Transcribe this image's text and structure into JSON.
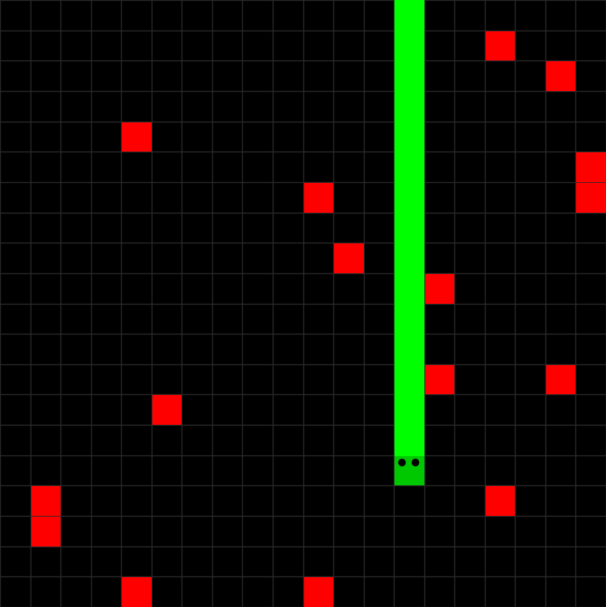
{
  "game": {
    "grid": {
      "cols": 20,
      "rows": 20
    },
    "colors": {
      "background": "#000000",
      "grid_line": "#2a2a2a",
      "snake_body": "#00ff00",
      "snake_head": "#00c800",
      "snake_eye": "#000000",
      "food": "#ff0000"
    },
    "snake": {
      "direction": "down",
      "segments": [
        [
          13,
          15
        ],
        [
          13,
          14
        ],
        [
          13,
          13
        ],
        [
          13,
          12
        ],
        [
          13,
          11
        ],
        [
          13,
          10
        ],
        [
          13,
          9
        ],
        [
          13,
          8
        ],
        [
          13,
          7
        ],
        [
          13,
          6
        ],
        [
          13,
          5
        ],
        [
          13,
          4
        ],
        [
          13,
          3
        ],
        [
          13,
          2
        ],
        [
          13,
          1
        ],
        [
          13,
          0
        ]
      ]
    },
    "food": [
      [
        16,
        1
      ],
      [
        18,
        2
      ],
      [
        4,
        4
      ],
      [
        19,
        5
      ],
      [
        19,
        6
      ],
      [
        10,
        6
      ],
      [
        11,
        8
      ],
      [
        14,
        9
      ],
      [
        14,
        12
      ],
      [
        18,
        12
      ],
      [
        5,
        13
      ],
      [
        16,
        16
      ],
      [
        1,
        16
      ],
      [
        1,
        17
      ],
      [
        4,
        19
      ],
      [
        10,
        19
      ]
    ]
  }
}
